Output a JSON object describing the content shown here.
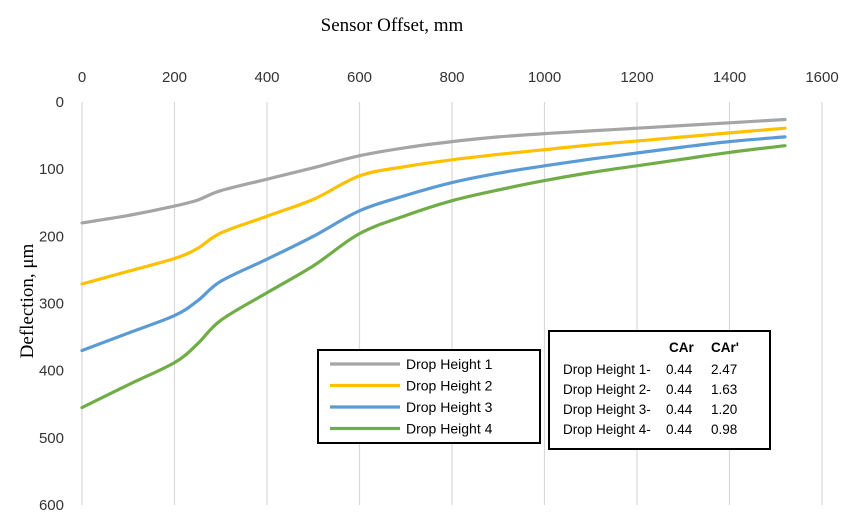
{
  "chart_data": {
    "type": "line",
    "title": "",
    "xlabel": "Sensor Offset, mm",
    "ylabel": "Deflection, μm",
    "xlim": [
      0,
      1600
    ],
    "ylim": [
      0,
      600
    ],
    "y_inverted": true,
    "x_axis_position": "top",
    "xticks": [
      0,
      200,
      400,
      600,
      800,
      1000,
      1200,
      1400,
      1600
    ],
    "yticks": [
      0,
      100,
      200,
      300,
      400,
      500,
      600
    ],
    "grid": "vertical",
    "legend_position": "bottom-center",
    "series": [
      {
        "name": "Drop Height 1",
        "color": "#a5a5a5",
        "x": [
          0,
          100,
          200,
          250,
          300,
          400,
          500,
          600,
          700,
          800,
          900,
          1000,
          1100,
          1200,
          1300,
          1400,
          1520
        ],
        "y": [
          180,
          169,
          155,
          146,
          132,
          115,
          98,
          80,
          68,
          59,
          52,
          47,
          43,
          39,
          35,
          31,
          26
        ]
      },
      {
        "name": "Drop Height 2",
        "color": "#ffc000",
        "x": [
          0,
          100,
          200,
          250,
          300,
          400,
          500,
          600,
          700,
          800,
          900,
          1000,
          1100,
          1200,
          1300,
          1400,
          1520
        ],
        "y": [
          271,
          252,
          233,
          218,
          195,
          170,
          145,
          110,
          96,
          86,
          78,
          71,
          64,
          58,
          52,
          46,
          39
        ]
      },
      {
        "name": "Drop Height 3",
        "color": "#5b9bd5",
        "x": [
          0,
          100,
          200,
          250,
          300,
          400,
          500,
          600,
          700,
          800,
          900,
          1000,
          1100,
          1200,
          1300,
          1400,
          1520
        ],
        "y": [
          370,
          344,
          318,
          296,
          267,
          234,
          200,
          162,
          139,
          120,
          106,
          95,
          85,
          76,
          67,
          59,
          52
        ]
      },
      {
        "name": "Drop Height 4",
        "color": "#70ad47",
        "x": [
          0,
          100,
          200,
          250,
          300,
          400,
          500,
          600,
          700,
          800,
          900,
          1000,
          1100,
          1200,
          1300,
          1400,
          1520
        ],
        "y": [
          455,
          421,
          388,
          360,
          325,
          284,
          244,
          196,
          169,
          147,
          131,
          117,
          105,
          95,
          85,
          75,
          65
        ]
      }
    ],
    "table": {
      "headers": [
        "",
        "CAr",
        "CAr'"
      ],
      "rows": [
        [
          "Drop Height 1-",
          "0.44",
          "2.47"
        ],
        [
          "Drop Height 2-",
          "0.44",
          "1.63"
        ],
        [
          "Drop Height 3-",
          "0.44",
          "1.20"
        ],
        [
          "Drop Height 4-",
          "0.44",
          "0.98"
        ]
      ]
    }
  }
}
